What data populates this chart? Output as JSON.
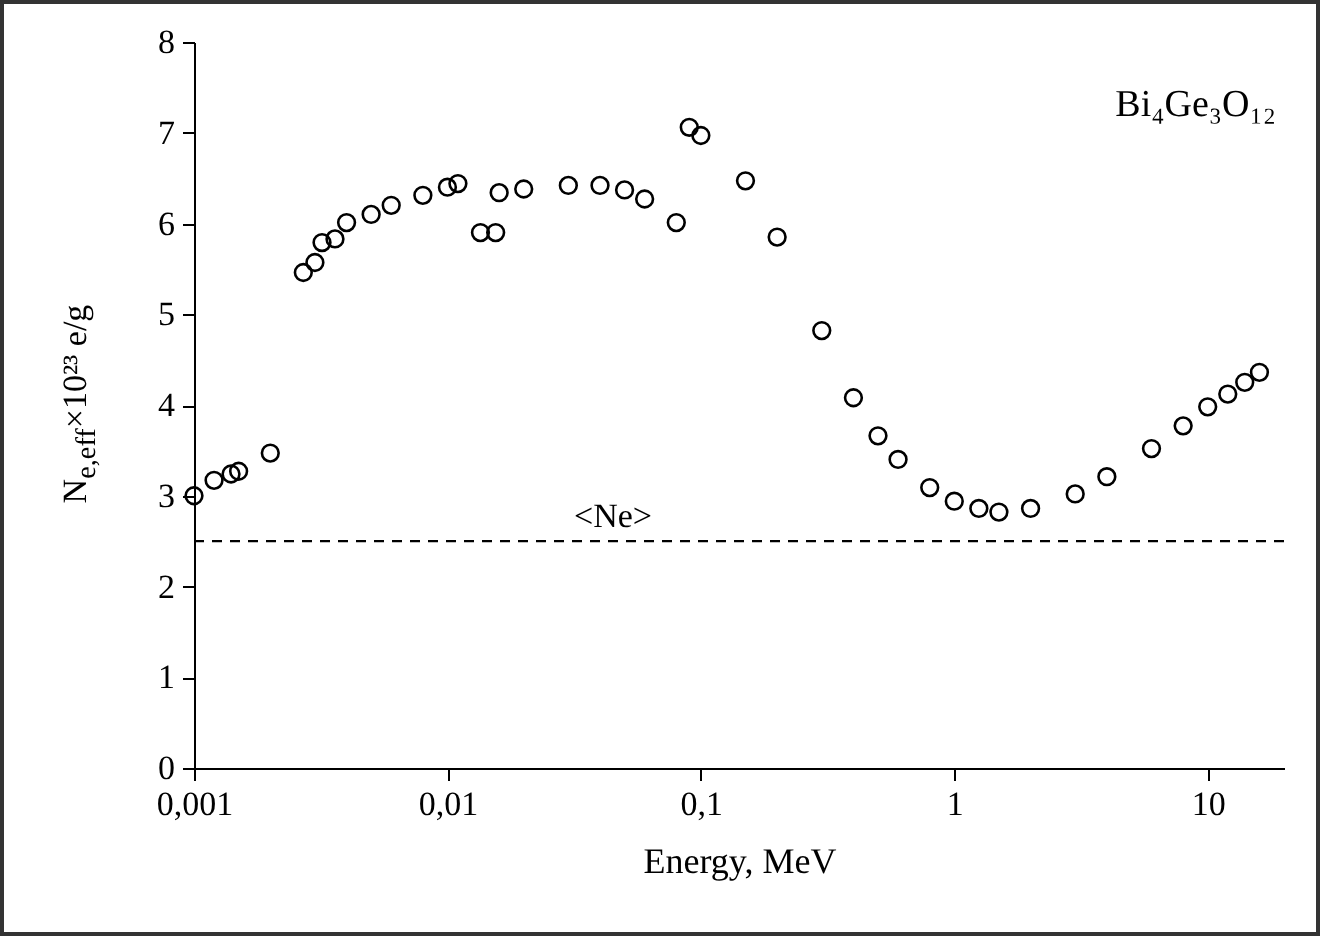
{
  "chart_data": {
    "type": "scatter",
    "title": "Bi₄Ge₃O₁₂",
    "xlabel": "Energy, MeV",
    "ylabel": "N$_{e,eff}$×10²³ e/g",
    "x": [
      0.001,
      0.0012,
      0.0014,
      0.0015,
      0.002,
      0.0027,
      0.003,
      0.0032,
      0.0036,
      0.004,
      0.005,
      0.006,
      0.008,
      0.01,
      0.011,
      0.0135,
      0.0155,
      0.016,
      0.02,
      0.03,
      0.04,
      0.05,
      0.06,
      0.08,
      0.09,
      0.1,
      0.15,
      0.2,
      0.3,
      0.4,
      0.5,
      0.6,
      0.8,
      1,
      1.25,
      1.5,
      2,
      3,
      4,
      6,
      8,
      10,
      12,
      14,
      16
    ],
    "series": [
      {
        "color": "#000000",
        "values": [
          3.0,
          3.17,
          3.24,
          3.27,
          3.47,
          5.46,
          5.57,
          5.79,
          5.83,
          6.01,
          6.1,
          6.2,
          6.31,
          6.4,
          6.44,
          5.9,
          5.9,
          6.34,
          6.38,
          6.42,
          6.42,
          6.37,
          6.27,
          6.01,
          7.06,
          6.97,
          6.47,
          5.85,
          4.82,
          4.08,
          3.66,
          3.4,
          3.09,
          2.94,
          2.86,
          2.82,
          2.86,
          3.02,
          3.21,
          3.52,
          3.77,
          3.98,
          4.12,
          4.25,
          4.36
        ]
      }
    ],
    "log": "x",
    "marker": "circle",
    "xlim": [
      0.001,
      20
    ],
    "xticks": [
      {
        "value": 0.001,
        "label": "0,001"
      },
      {
        "value": 0.01,
        "label": "0,01"
      },
      {
        "value": 0.1,
        "label": "0,1"
      },
      1,
      10
    ],
    "ylim": [
      0,
      8
    ],
    "yticks": [
      0,
      1,
      2,
      3,
      4,
      5,
      6,
      7,
      8
    ],
    "ref_lines": [
      {
        "axis": "y",
        "value": 2.5,
        "line_style": "dashed",
        "color": "#000000"
      }
    ],
    "annotations": [
      {
        "text": "<Ne>",
        "x": 0.045,
        "y": 2.5
      }
    ]
  }
}
